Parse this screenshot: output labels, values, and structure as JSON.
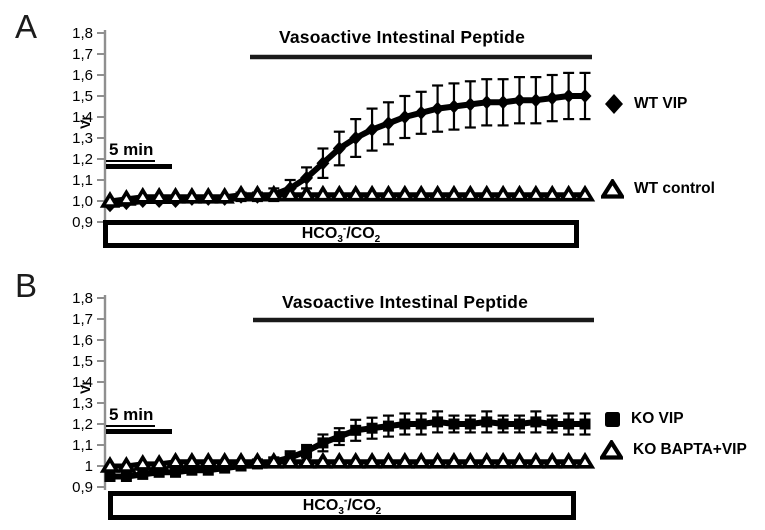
{
  "figure_colors": {
    "series": "#000000",
    "axis": "#8f8f8f",
    "background": "#ffffff"
  },
  "chart_data": [
    {
      "type": "line",
      "panel": "A",
      "title": "Vasoactive Intestinal Peptide",
      "xlabel": "",
      "ylabel": "Vr",
      "ylim": [
        0.9,
        1.8
      ],
      "ytick_labels": [
        "1,8",
        "1,7",
        "1,6",
        "1,5",
        "1,4",
        "1,3",
        "1,2",
        "1,1",
        "1,0",
        "0,9"
      ],
      "grid": false,
      "legend_position": "right",
      "x_scale_bar": "5 min",
      "x_condition": "HCO3-/CO2",
      "condition": {
        "p1": "HCO",
        "sub1": "3",
        "sup1": "-",
        "p2": "/CO",
        "sub2": "2"
      },
      "series": [
        {
          "name": "WT VIP",
          "marker": "filled-diamond",
          "values": [
            0.98,
            0.99,
            1.0,
            1.0,
            1.0,
            1.01,
            1.01,
            1.01,
            1.02,
            1.02,
            1.03,
            1.06,
            1.11,
            1.18,
            1.25,
            1.3,
            1.34,
            1.37,
            1.4,
            1.42,
            1.44,
            1.45,
            1.46,
            1.47,
            1.47,
            1.48,
            1.48,
            1.49,
            1.5,
            1.5
          ],
          "errors": [
            0,
            0,
            0,
            0,
            0,
            0.015,
            0.015,
            0.015,
            0.02,
            0.02,
            0.03,
            0.04,
            0.05,
            0.07,
            0.08,
            0.09,
            0.1,
            0.1,
            0.1,
            0.1,
            0.11,
            0.11,
            0.11,
            0.11,
            0.11,
            0.11,
            0.11,
            0.11,
            0.11,
            0.11
          ]
        },
        {
          "name": "WT control",
          "marker": "open-triangle",
          "values": [
            1.0,
            1.01,
            1.02,
            1.02,
            1.02,
            1.02,
            1.02,
            1.02,
            1.03,
            1.03,
            1.03,
            1.03,
            1.03,
            1.03,
            1.03,
            1.03,
            1.03,
            1.03,
            1.03,
            1.03,
            1.03,
            1.03,
            1.03,
            1.03,
            1.03,
            1.03,
            1.03,
            1.03,
            1.03,
            1.03
          ],
          "errors": [
            0,
            0,
            0,
            0,
            0,
            0,
            0,
            0,
            0,
            0,
            0,
            0,
            0,
            0,
            0,
            0,
            0,
            0,
            0,
            0,
            0,
            0,
            0,
            0,
            0,
            0,
            0,
            0,
            0,
            0
          ]
        }
      ]
    },
    {
      "type": "line",
      "panel": "B",
      "title": "Vasoactive Intestinal Peptide",
      "xlabel": "",
      "ylabel": "Vr",
      "ylim": [
        0.9,
        1.8
      ],
      "ytick_labels": [
        "1,8",
        "1,7",
        "1,6",
        "1,5",
        "1,4",
        "1,3",
        "1,2",
        "1,1",
        "1",
        "0,9"
      ],
      "grid": false,
      "legend_position": "right",
      "x_scale_bar": "5 min",
      "x_condition": "HCO3-/CO2",
      "condition": {
        "p1": "HCO",
        "sub1": "3",
        "sup1": "-",
        "p2": "/CO",
        "sub2": "2"
      },
      "series": [
        {
          "name": "KO VIP",
          "marker": "filled-square",
          "values": [
            0.95,
            0.95,
            0.96,
            0.97,
            0.97,
            0.98,
            0.98,
            0.99,
            1.0,
            1.01,
            1.02,
            1.04,
            1.07,
            1.11,
            1.14,
            1.17,
            1.18,
            1.19,
            1.2,
            1.2,
            1.21,
            1.2,
            1.2,
            1.21,
            1.2,
            1.2,
            1.21,
            1.2,
            1.2,
            1.2
          ],
          "errors": [
            0,
            0,
            0,
            0,
            0,
            0,
            0,
            0,
            0,
            0.02,
            0.02,
            0.03,
            0.03,
            0.04,
            0.04,
            0.05,
            0.05,
            0.05,
            0.05,
            0.05,
            0.05,
            0.04,
            0.04,
            0.05,
            0.04,
            0.04,
            0.05,
            0.04,
            0.05,
            0.05
          ]
        },
        {
          "name": "KO BAPTA+VIP",
          "marker": "open-triangle",
          "values": [
            1.0,
            1.0,
            1.01,
            1.01,
            1.02,
            1.02,
            1.02,
            1.02,
            1.02,
            1.02,
            1.02,
            1.02,
            1.02,
            1.02,
            1.02,
            1.02,
            1.02,
            1.02,
            1.02,
            1.02,
            1.02,
            1.02,
            1.02,
            1.02,
            1.02,
            1.02,
            1.02,
            1.02,
            1.02,
            1.02
          ],
          "errors": [
            0,
            0,
            0,
            0,
            0,
            0,
            0,
            0,
            0,
            0,
            0,
            0,
            0,
            0,
            0,
            0,
            0,
            0,
            0,
            0,
            0,
            0,
            0,
            0,
            0,
            0,
            0,
            0,
            0,
            0
          ]
        }
      ]
    }
  ]
}
